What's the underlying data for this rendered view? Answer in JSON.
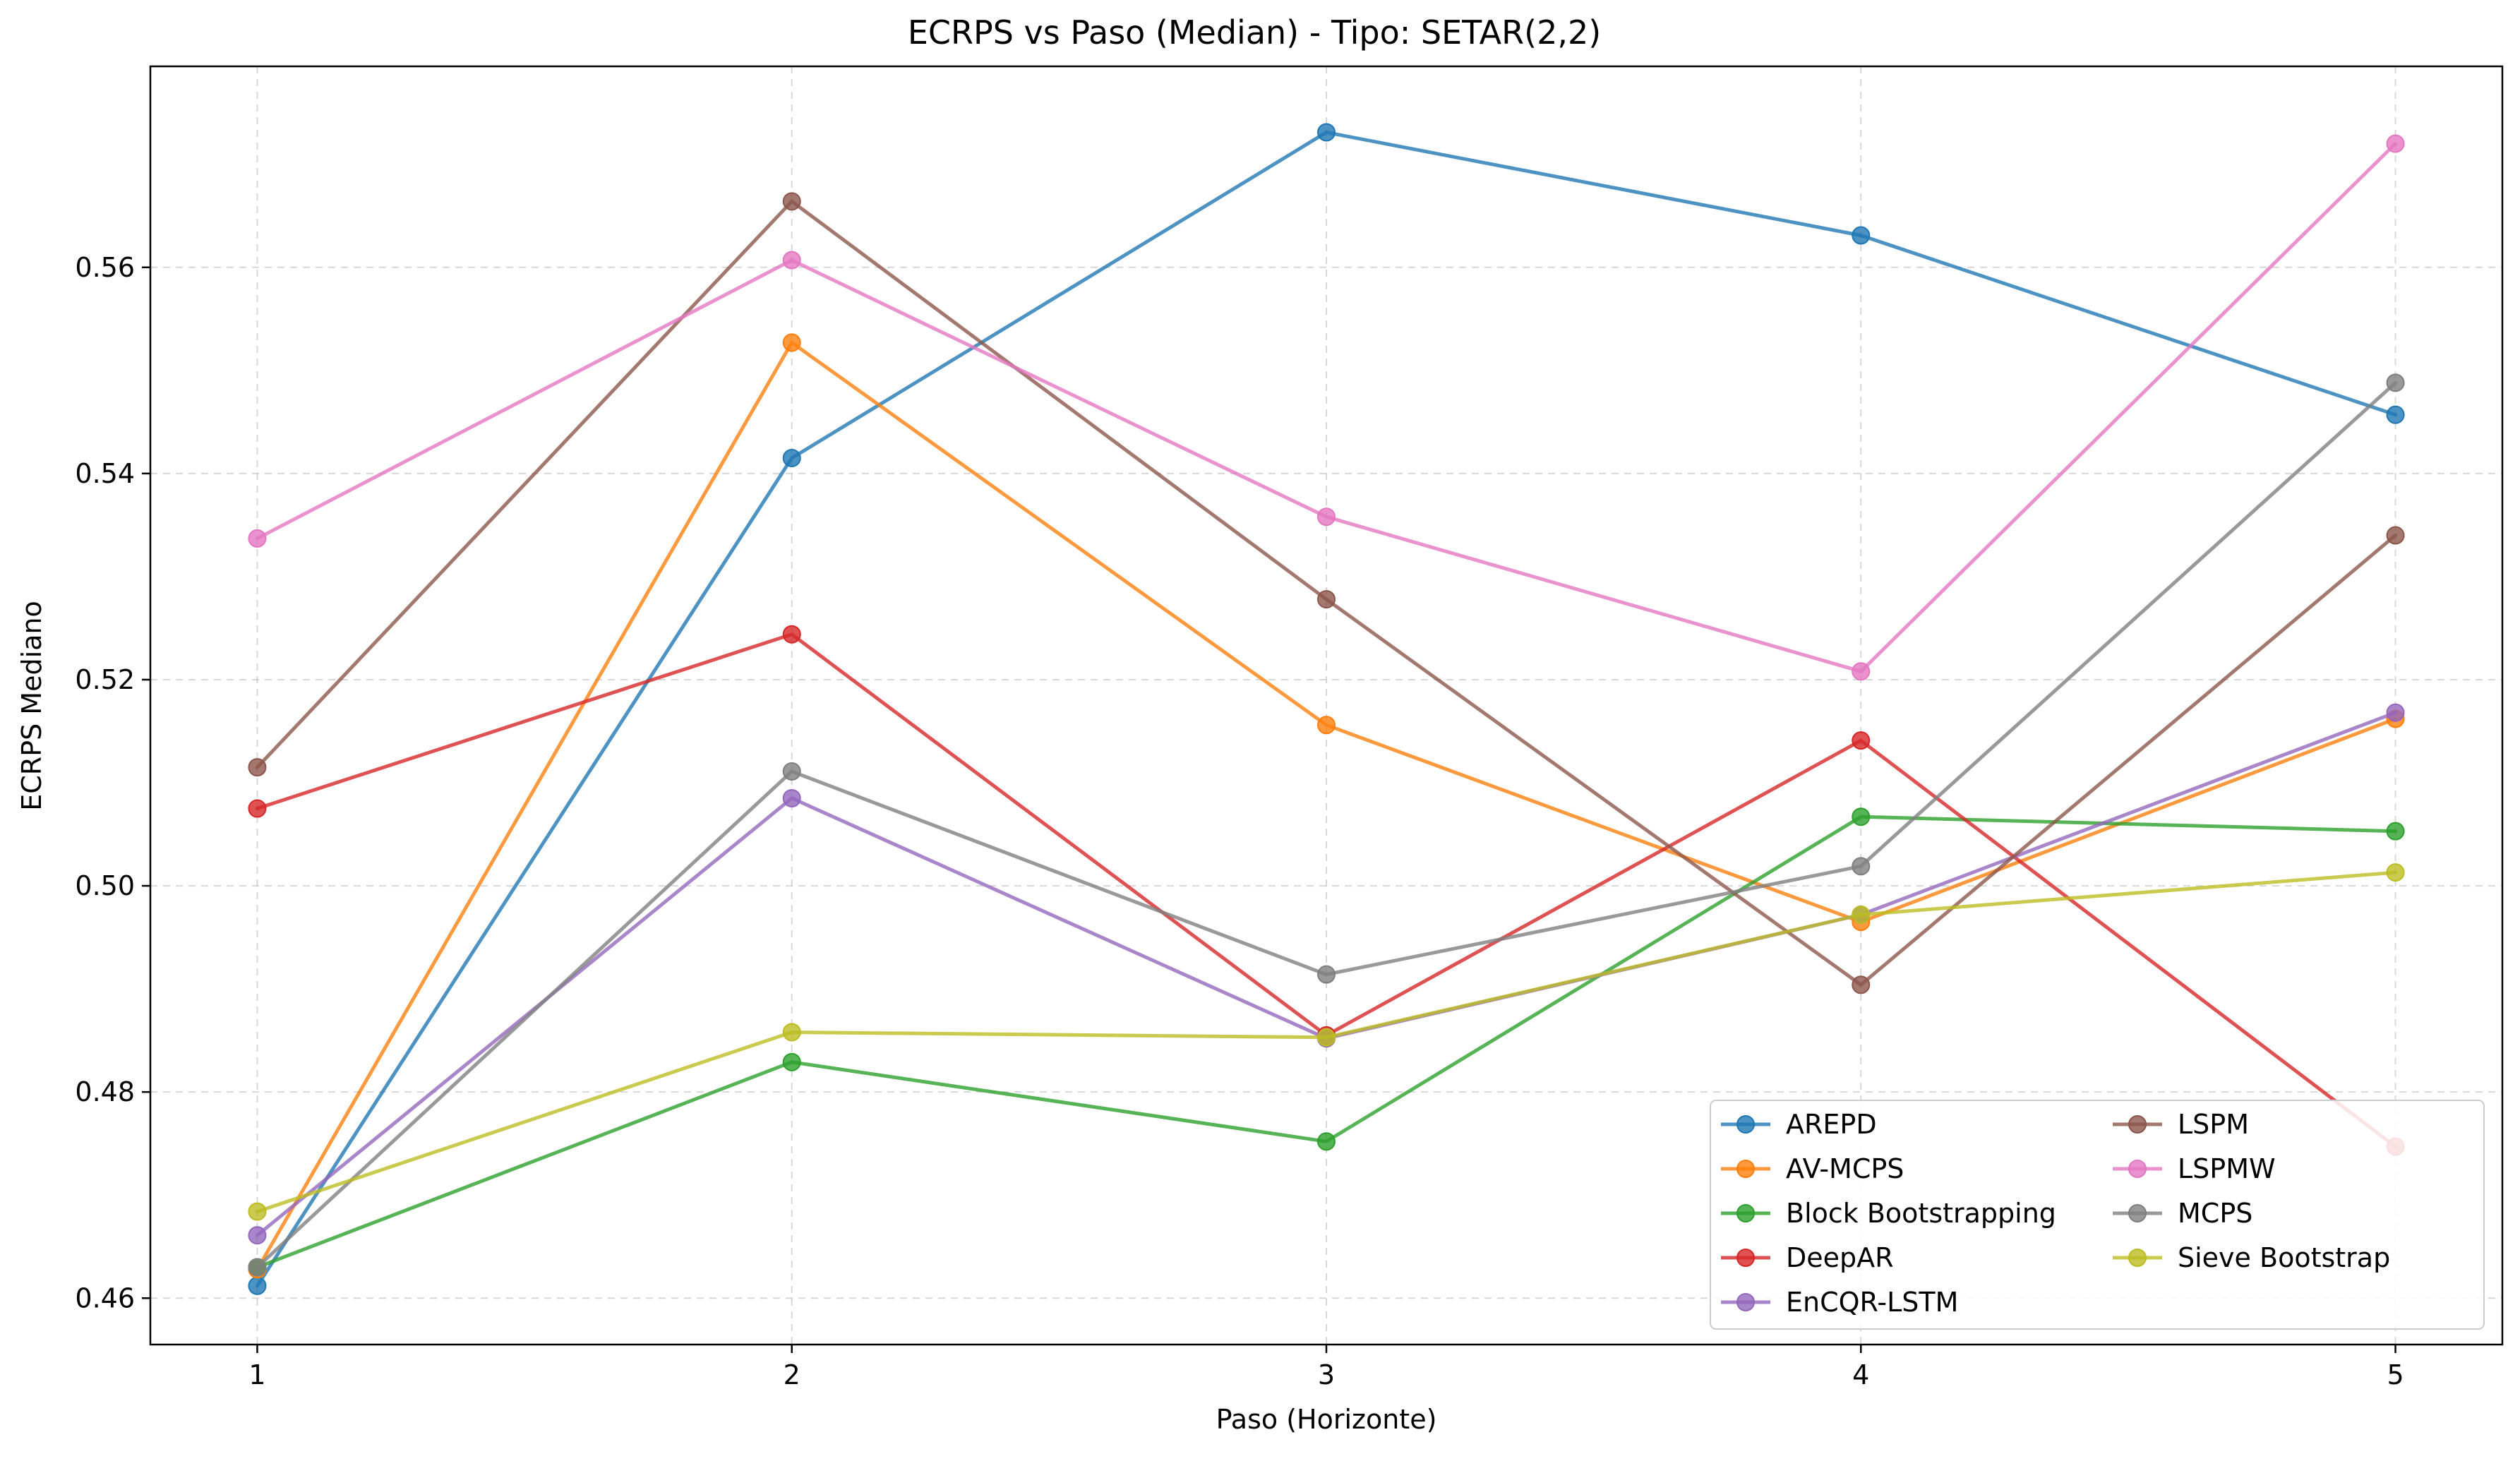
{
  "chart_data": {
    "type": "line",
    "title": "ECRPS vs Paso (Median) - Tipo: SETAR(2,2)",
    "xlabel": "Paso (Horizonte)",
    "ylabel": "ECRPS Mediano",
    "x": [
      1,
      2,
      3,
      4,
      5
    ],
    "x_tick_labels": [
      "1",
      "2",
      "3",
      "4",
      "5"
    ],
    "xlim": [
      0.8,
      5.2
    ],
    "ylim": [
      0.4555,
      0.5795
    ],
    "y_ticks": [
      0.46,
      0.48,
      0.5,
      0.52,
      0.54,
      0.56
    ],
    "y_tick_labels": [
      "0.46",
      "0.48",
      "0.50",
      "0.52",
      "0.54",
      "0.56"
    ],
    "grid": true,
    "legend_position": "bottom-right",
    "legend_columns": 2,
    "series": [
      {
        "name": "AREPD",
        "color": "#1f77b4",
        "values": [
          0.4612,
          0.5415,
          0.5731,
          0.5631,
          0.5457
        ]
      },
      {
        "name": "AV-MCPS",
        "color": "#ff7f0e",
        "values": [
          0.4628,
          0.5527,
          0.5156,
          0.4965,
          0.5162
        ]
      },
      {
        "name": "Block Bootstrapping",
        "color": "#2ca02c",
        "values": [
          0.463,
          0.4829,
          0.4752,
          0.5067,
          0.5053
        ]
      },
      {
        "name": "DeepAR",
        "color": "#d62728",
        "values": [
          0.5075,
          0.5244,
          0.4855,
          0.5141,
          0.4747
        ]
      },
      {
        "name": "EnCQR-LSTM",
        "color": "#9467bd",
        "values": [
          0.4661,
          0.5085,
          0.4852,
          0.4972,
          0.5168
        ]
      },
      {
        "name": "LSPM",
        "color": "#8c564b",
        "values": [
          0.5115,
          0.5664,
          0.5278,
          0.4904,
          0.534
        ]
      },
      {
        "name": "LSPMW",
        "color": "#e377c2",
        "values": [
          0.5337,
          0.5607,
          0.5358,
          0.5208,
          0.572
        ]
      },
      {
        "name": "MCPS",
        "color": "#7f7f7f",
        "values": [
          0.463,
          0.5111,
          0.4914,
          0.5019,
          0.5488
        ]
      },
      {
        "name": "Sieve Bootstrap",
        "color": "#bcbd22",
        "values": [
          0.4684,
          0.4858,
          0.4853,
          0.4972,
          0.5013
        ]
      }
    ]
  }
}
